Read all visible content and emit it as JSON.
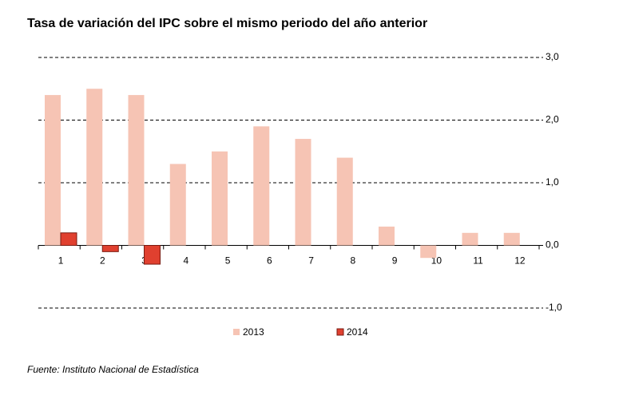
{
  "chart_data": {
    "type": "bar",
    "title": "Tasa de variación del IPC sobre el mismo periodo del año anterior",
    "categories": [
      "1",
      "2",
      "3",
      "4",
      "5",
      "6",
      "7",
      "8",
      "9",
      "10",
      "11",
      "12"
    ],
    "series": [
      {
        "name": "2013",
        "color": "#f6c4b4",
        "values": [
          2.4,
          2.5,
          2.4,
          1.3,
          1.5,
          1.9,
          1.7,
          1.4,
          0.3,
          -0.2,
          0.2,
          0.2
        ]
      },
      {
        "name": "2014",
        "color": "#e0402f",
        "values": [
          0.2,
          -0.1,
          -0.3,
          null,
          null,
          null,
          null,
          null,
          null,
          null,
          null,
          null
        ]
      }
    ],
    "ylim": [
      -1,
      3
    ],
    "yticks": [
      {
        "value": 3,
        "label": "3,0"
      },
      {
        "value": 2,
        "label": "2,0"
      },
      {
        "value": 1,
        "label": "1,0"
      },
      {
        "value": 0,
        "label": "0,0"
      },
      {
        "value": -1,
        "label": "-1,0"
      }
    ],
    "grid": true,
    "legend": "bottom",
    "source": "Fuente: Instituto Nacional de Estadística"
  }
}
